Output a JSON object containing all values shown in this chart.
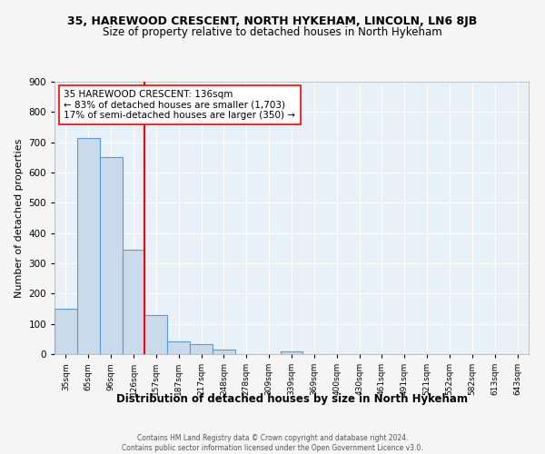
{
  "title": "35, HAREWOOD CRESCENT, NORTH HYKEHAM, LINCOLN, LN6 8JB",
  "subtitle": "Size of property relative to detached houses in North Hykeham",
  "xlabel": "Distribution of detached houses by size in North Hykeham",
  "ylabel": "Number of detached properties",
  "categories": [
    "35sqm",
    "65sqm",
    "96sqm",
    "126sqm",
    "157sqm",
    "187sqm",
    "217sqm",
    "248sqm",
    "278sqm",
    "309sqm",
    "339sqm",
    "369sqm",
    "400sqm",
    "430sqm",
    "461sqm",
    "491sqm",
    "521sqm",
    "552sqm",
    "582sqm",
    "613sqm",
    "643sqm"
  ],
  "bar_values": [
    150,
    715,
    650,
    345,
    130,
    42,
    32,
    14,
    0,
    0,
    10,
    0,
    0,
    0,
    0,
    0,
    0,
    0,
    0,
    0,
    0
  ],
  "bar_color": "#c9daea",
  "bar_edge_color": "#5b9bd5",
  "red_line_x": 3.5,
  "annotation_text": "35 HAREWOOD CRESCENT: 136sqm\n← 83% of detached houses are smaller (1,703)\n17% of semi-detached houses are larger (350) →",
  "annotation_box_color": "white",
  "annotation_border_color": "red",
  "ylim": [
    0,
    900
  ],
  "yticks": [
    0,
    100,
    200,
    300,
    400,
    500,
    600,
    700,
    800,
    900
  ],
  "footer_line1": "Contains HM Land Registry data © Crown copyright and database right 2024.",
  "footer_line2": "Contains public sector information licensed under the Open Government Licence v3.0.",
  "background_color": "#e8f0f8",
  "fig_background_color": "#f5f5f5",
  "grid_color": "#ffffff",
  "title_fontsize": 9,
  "subtitle_fontsize": 8.5,
  "xlabel_fontsize": 8.5,
  "ylabel_fontsize": 8,
  "annotation_fontsize": 7.5
}
